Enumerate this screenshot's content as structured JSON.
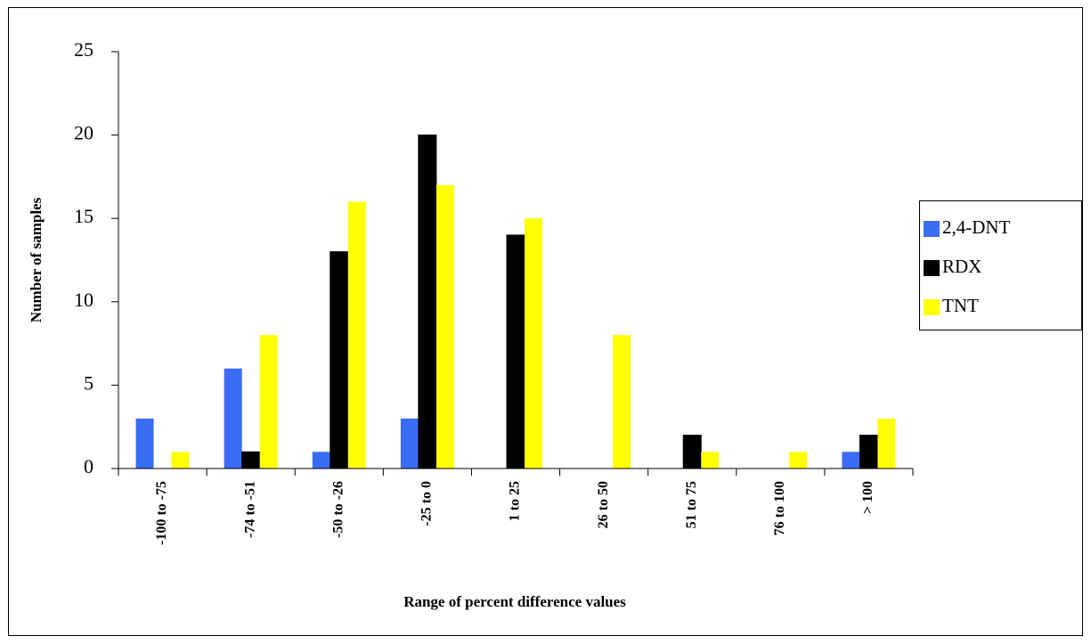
{
  "chart_data": {
    "type": "bar",
    "x_label": "Range of percent difference values",
    "y_label": "Number of samples",
    "categories": [
      "-100 to -75",
      "-74 to -51",
      "-50 to -26",
      "-25 to 0",
      "1 to 25",
      "26 to 50",
      "51 to 75",
      "76 to 100",
      "> 100"
    ],
    "series": [
      {
        "name": "2,4-DNT",
        "color": "#3b6cf6",
        "values": [
          3,
          6,
          1,
          3,
          0,
          0,
          0,
          0,
          1
        ]
      },
      {
        "name": "RDX",
        "color": "#000000",
        "values": [
          0,
          1,
          13,
          20,
          14,
          0,
          2,
          0,
          2
        ]
      },
      {
        "name": "TNT",
        "color": "#ffff00",
        "values": [
          1,
          8,
          16,
          17,
          15,
          8,
          1,
          1,
          3
        ]
      }
    ],
    "ylim": [
      0,
      25
    ],
    "yticks": [
      0,
      5,
      10,
      15,
      20,
      25
    ],
    "grid": false,
    "legend": "right"
  }
}
